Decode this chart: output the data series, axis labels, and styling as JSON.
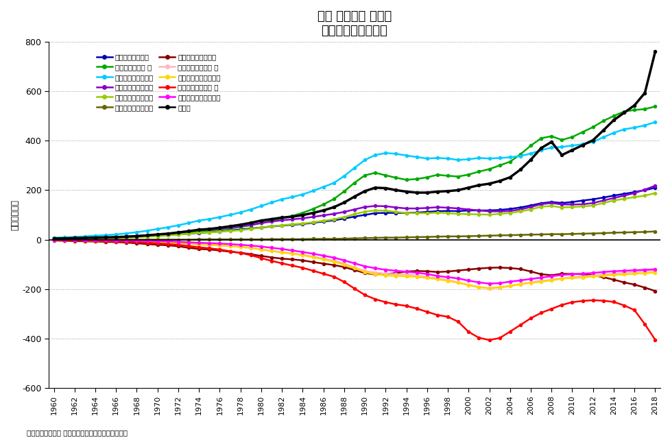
{
  "title": "日本 法人企業 全規模\n資産・負債・純資産",
  "ylabel": "金額［兆円］",
  "footnote": "法人企業統計調査 金融業、保険業以外の業種の数値",
  "years": [
    1960,
    1961,
    1962,
    1963,
    1964,
    1965,
    1966,
    1967,
    1968,
    1969,
    1970,
    1971,
    1972,
    1973,
    1974,
    1975,
    1976,
    1977,
    1978,
    1979,
    1980,
    1981,
    1982,
    1983,
    1984,
    1985,
    1986,
    1987,
    1988,
    1989,
    1990,
    1991,
    1992,
    1993,
    1994,
    1995,
    1996,
    1997,
    1998,
    1999,
    2000,
    2001,
    2002,
    2003,
    2004,
    2005,
    2006,
    2007,
    2008,
    2009,
    2010,
    2011,
    2012,
    2013,
    2014,
    2015,
    2016,
    2017,
    2018
  ],
  "series": [
    {
      "key": "assets_cash",
      "label": "資産：現金・預金",
      "color": "#0000BB",
      "values": [
        5,
        5,
        6,
        7,
        8,
        8,
        9,
        10,
        12,
        14,
        16,
        18,
        21,
        24,
        27,
        30,
        33,
        37,
        41,
        45,
        49,
        53,
        57,
        60,
        63,
        68,
        73,
        78,
        85,
        93,
        100,
        107,
        108,
        108,
        108,
        109,
        112,
        115,
        116,
        115,
        118,
        118,
        118,
        120,
        124,
        130,
        138,
        147,
        152,
        148,
        152,
        158,
        163,
        170,
        178,
        185,
        192,
        200,
        210
      ]
    },
    {
      "key": "assets_securities",
      "label": "資産：有価証券 他",
      "color": "#00AA00",
      "values": [
        2,
        3,
        4,
        5,
        6,
        7,
        8,
        10,
        12,
        15,
        18,
        21,
        26,
        31,
        33,
        36,
        40,
        45,
        51,
        58,
        67,
        76,
        86,
        96,
        108,
        124,
        142,
        164,
        195,
        230,
        260,
        270,
        260,
        250,
        242,
        245,
        252,
        262,
        258,
        255,
        263,
        275,
        285,
        300,
        315,
        345,
        380,
        410,
        418,
        403,
        415,
        435,
        455,
        480,
        500,
        518,
        524,
        528,
        538
      ]
    },
    {
      "key": "assets_tangible",
      "label": "資産：有形固定資産",
      "color": "#00CCFF",
      "values": [
        8,
        9,
        11,
        13,
        16,
        18,
        21,
        25,
        30,
        36,
        43,
        50,
        58,
        67,
        77,
        83,
        91,
        100,
        110,
        122,
        136,
        150,
        163,
        172,
        183,
        197,
        213,
        229,
        257,
        290,
        322,
        342,
        350,
        347,
        340,
        334,
        328,
        330,
        328,
        322,
        325,
        330,
        328,
        330,
        333,
        338,
        348,
        362,
        372,
        375,
        380,
        386,
        395,
        414,
        432,
        446,
        453,
        462,
        475
      ]
    },
    {
      "key": "assets_notes_recv",
      "label": "資産：手形・売掛金",
      "color": "#8800CC",
      "values": [
        4,
        5,
        6,
        7,
        8,
        9,
        10,
        12,
        15,
        18,
        21,
        24,
        28,
        34,
        39,
        41,
        44,
        49,
        54,
        60,
        67,
        73,
        78,
        82,
        86,
        92,
        98,
        104,
        112,
        122,
        132,
        136,
        135,
        130,
        126,
        126,
        128,
        131,
        129,
        126,
        122,
        118,
        114,
        114,
        116,
        122,
        132,
        143,
        148,
        142,
        142,
        143,
        148,
        158,
        168,
        178,
        188,
        202,
        218
      ]
    },
    {
      "key": "assets_inventory",
      "label": "資産：在庫・その他",
      "color": "#99CC00",
      "values": [
        2,
        3,
        3,
        4,
        5,
        6,
        7,
        8,
        10,
        12,
        14,
        17,
        20,
        24,
        28,
        29,
        32,
        35,
        38,
        43,
        49,
        54,
        58,
        62,
        65,
        70,
        76,
        82,
        91,
        103,
        113,
        118,
        117,
        112,
        108,
        107,
        107,
        109,
        107,
        104,
        103,
        102,
        101,
        104,
        108,
        114,
        122,
        133,
        136,
        130,
        132,
        134,
        138,
        148,
        158,
        165,
        172,
        178,
        188
      ]
    },
    {
      "key": "assets_intangible",
      "label": "資産：無形固定資産",
      "color": "#666600",
      "values": [
        0,
        0,
        0,
        0,
        0,
        0,
        0,
        0,
        0,
        0,
        0,
        0,
        0,
        0,
        1,
        1,
        1,
        1,
        1,
        1,
        1,
        2,
        2,
        2,
        2,
        3,
        3,
        3,
        4,
        5,
        6,
        7,
        8,
        8,
        9,
        10,
        11,
        12,
        13,
        13,
        14,
        15,
        16,
        17,
        18,
        19,
        20,
        21,
        22,
        22,
        23,
        24,
        25,
        26,
        28,
        29,
        30,
        31,
        33
      ]
    },
    {
      "key": "liab_notes_pay",
      "label": "負債：手形・買掛金",
      "color": "#880000",
      "values": [
        -4,
        -5,
        -6,
        -7,
        -8,
        -9,
        -10,
        -12,
        -15,
        -18,
        -21,
        -23,
        -27,
        -33,
        -38,
        -40,
        -44,
        -49,
        -53,
        -59,
        -66,
        -72,
        -77,
        -80,
        -84,
        -91,
        -97,
        -103,
        -111,
        -123,
        -135,
        -141,
        -140,
        -135,
        -129,
        -127,
        -128,
        -131,
        -129,
        -125,
        -121,
        -117,
        -114,
        -113,
        -115,
        -119,
        -129,
        -140,
        -144,
        -138,
        -139,
        -140,
        -144,
        -152,
        -162,
        -173,
        -182,
        -194,
        -208
      ]
    },
    {
      "key": "liab_short_term",
      "label": "負債：短期借入金 他",
      "color": "#FFB6C1",
      "values": [
        -2,
        -3,
        -3,
        -4,
        -5,
        -5,
        -6,
        -7,
        -8,
        -10,
        -11,
        -13,
        -15,
        -17,
        -20,
        -22,
        -24,
        -27,
        -30,
        -34,
        -40,
        -46,
        -51,
        -56,
        -61,
        -69,
        -77,
        -85,
        -97,
        -113,
        -127,
        -133,
        -138,
        -140,
        -141,
        -145,
        -151,
        -157,
        -163,
        -174,
        -183,
        -192,
        -197,
        -194,
        -188,
        -180,
        -173,
        -167,
        -162,
        -156,
        -152,
        -149,
        -145,
        -141,
        -138,
        -134,
        -131,
        -128,
        -125
      ]
    },
    {
      "key": "liab_other_current",
      "label": "負債：その他流動負債",
      "color": "#FFD700",
      "values": [
        -2,
        -2,
        -3,
        -3,
        -4,
        -4,
        -5,
        -6,
        -7,
        -8,
        -10,
        -11,
        -13,
        -16,
        -19,
        -20,
        -23,
        -26,
        -29,
        -33,
        -39,
        -46,
        -52,
        -57,
        -63,
        -71,
        -80,
        -89,
        -101,
        -116,
        -131,
        -140,
        -145,
        -147,
        -148,
        -151,
        -155,
        -160,
        -167,
        -174,
        -184,
        -193,
        -196,
        -193,
        -187,
        -180,
        -175,
        -170,
        -165,
        -158,
        -155,
        -153,
        -149,
        -146,
        -143,
        -141,
        -138,
        -136,
        -133
      ]
    },
    {
      "key": "liab_long_term",
      "label": "負債：長期借入金 他",
      "color": "#FF0000",
      "values": [
        -2,
        -3,
        -3,
        -4,
        -5,
        -6,
        -7,
        -8,
        -10,
        -12,
        -15,
        -18,
        -21,
        -26,
        -31,
        -35,
        -40,
        -47,
        -54,
        -63,
        -75,
        -86,
        -96,
        -105,
        -114,
        -126,
        -138,
        -150,
        -171,
        -198,
        -224,
        -241,
        -253,
        -262,
        -268,
        -279,
        -292,
        -305,
        -312,
        -332,
        -373,
        -397,
        -406,
        -398,
        -372,
        -345,
        -318,
        -296,
        -280,
        -264,
        -253,
        -248,
        -245,
        -247,
        -252,
        -266,
        -285,
        -342,
        -405
      ]
    },
    {
      "key": "liab_other_fixed",
      "label": "負債：その他固定負債",
      "color": "#FF00FF",
      "values": [
        -1,
        -1,
        -1,
        -2,
        -2,
        -2,
        -3,
        -3,
        -4,
        -5,
        -6,
        -7,
        -9,
        -11,
        -13,
        -14,
        -16,
        -18,
        -21,
        -24,
        -28,
        -33,
        -38,
        -44,
        -50,
        -57,
        -65,
        -73,
        -84,
        -96,
        -108,
        -116,
        -122,
        -126,
        -130,
        -134,
        -139,
        -147,
        -152,
        -157,
        -166,
        -173,
        -178,
        -176,
        -170,
        -165,
        -159,
        -154,
        -148,
        -143,
        -140,
        -138,
        -135,
        -131,
        -128,
        -126,
        -124,
        -122,
        -120
      ]
    },
    {
      "key": "net_assets",
      "label": "純資産",
      "color": "#000000",
      "values": [
        4,
        5,
        6,
        7,
        8,
        9,
        10,
        12,
        14,
        17,
        21,
        24,
        29,
        34,
        40,
        43,
        48,
        54,
        60,
        68,
        77,
        83,
        89,
        93,
        99,
        108,
        118,
        131,
        150,
        174,
        196,
        210,
        208,
        200,
        194,
        190,
        190,
        194,
        196,
        200,
        210,
        220,
        226,
        237,
        252,
        283,
        323,
        370,
        395,
        342,
        362,
        382,
        402,
        442,
        483,
        513,
        543,
        593,
        760
      ]
    }
  ],
  "ylim": [
    -600,
    800
  ],
  "yticks": [
    -600,
    -400,
    -200,
    0,
    200,
    400,
    600,
    800
  ],
  "background_color": "#FFFFFF",
  "grid_color": "#999999",
  "marker": "o",
  "marker_size": 3,
  "linewidth": 1.8
}
